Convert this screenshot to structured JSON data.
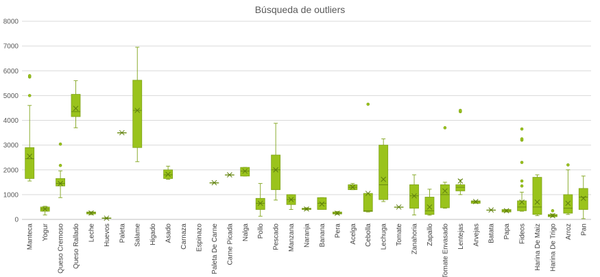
{
  "chart_data": {
    "type": "box",
    "title": "Búsqueda de outliers",
    "xlabel": "",
    "ylabel": "",
    "ylim": [
      0,
      8000
    ],
    "yticks": [
      0,
      1000,
      2000,
      3000,
      4000,
      5000,
      6000,
      7000,
      8000
    ],
    "grid": "horizontal",
    "legend": "none",
    "colors": {
      "box_fill": "#9AC31C",
      "box_stroke": "#7FA31A",
      "mean_marker": "#5E7E0F",
      "median": "#5E7E0F",
      "grid": "#D9D9D9",
      "axis": "#BFBFBF"
    },
    "categories": [
      "Manteca",
      "Yogur",
      "Queso Cremoso",
      "Queso Rallado",
      "Leche",
      "Huevos",
      "Paleta",
      "Salame",
      "Higado",
      "Asado",
      "Carnaza",
      "Espinazo",
      "Paleta De Carne",
      "Carne Picada",
      "Nalga",
      "Pollo",
      "Pescado",
      "Manzana",
      "Naranja",
      "Banana",
      "Pera",
      "Acelga",
      "Cebolla",
      "Lechuga",
      "Tomate",
      "Zanahoria",
      "Zapallo",
      "Tomate Envasado",
      "Lentejas",
      "Arvejas",
      "Batata",
      "Papa",
      "Fideos",
      "Harina De Maiz",
      "Harina De Trigo",
      "Arroz",
      "Pan"
    ],
    "boxes": [
      {
        "min": 1550,
        "q1": 1650,
        "median": 2450,
        "q3": 2900,
        "max": 4600,
        "mean": 2550,
        "outliers": [
          5000,
          5750,
          5800
        ]
      },
      {
        "min": 180,
        "q1": 330,
        "median": 420,
        "q3": 500,
        "max": 530,
        "mean": 420,
        "outliers": []
      },
      {
        "min": 880,
        "q1": 1350,
        "median": 1450,
        "q3": 1650,
        "max": 1960,
        "mean": 1450,
        "outliers": [
          2180,
          3040
        ]
      },
      {
        "min": 3700,
        "q1": 4150,
        "median": 4350,
        "q3": 5050,
        "max": 5600,
        "mean": 4480,
        "outliers": []
      },
      {
        "min": 190,
        "q1": 220,
        "median": 270,
        "q3": 300,
        "max": 310,
        "mean": 260,
        "outliers": []
      },
      {
        "min": 30,
        "q1": 40,
        "median": 50,
        "q3": 60,
        "max": 70,
        "mean": 50,
        "outliers": []
      },
      {
        "min": 3500,
        "q1": 3500,
        "median": 3500,
        "q3": 3500,
        "max": 3500,
        "mean": 3500,
        "outliers": []
      },
      {
        "min": 2330,
        "q1": 2900,
        "median": 4400,
        "q3": 5620,
        "max": 6950,
        "mean": 4400,
        "outliers": []
      },
      null,
      {
        "min": 1620,
        "q1": 1650,
        "median": 1800,
        "q3": 2000,
        "max": 2150,
        "mean": 1820,
        "outliers": []
      },
      null,
      null,
      {
        "min": 1480,
        "q1": 1480,
        "median": 1480,
        "q3": 1480,
        "max": 1480,
        "mean": 1480,
        "outliers": []
      },
      {
        "min": 1800,
        "q1": 1800,
        "median": 1800,
        "q3": 1800,
        "max": 1800,
        "mean": 1800,
        "outliers": []
      },
      {
        "min": 1750,
        "q1": 1750,
        "median": 1950,
        "q3": 2100,
        "max": 2100,
        "mean": 1950,
        "outliers": []
      },
      {
        "min": 130,
        "q1": 400,
        "median": 650,
        "q3": 850,
        "max": 1450,
        "mean": 650,
        "outliers": []
      },
      {
        "min": 780,
        "q1": 1200,
        "median": 2000,
        "q3": 2600,
        "max": 3880,
        "mean": 2000,
        "outliers": []
      },
      {
        "min": 400,
        "q1": 600,
        "median": 800,
        "q3": 1000,
        "max": 1000,
        "mean": 800,
        "outliers": []
      },
      {
        "min": 380,
        "q1": 400,
        "median": 420,
        "q3": 450,
        "max": 470,
        "mean": 420,
        "outliers": []
      },
      {
        "min": 400,
        "q1": 400,
        "median": 650,
        "q3": 880,
        "max": 880,
        "mean": 620,
        "outliers": []
      },
      {
        "min": 200,
        "q1": 220,
        "median": 250,
        "q3": 300,
        "max": 320,
        "mean": 250,
        "outliers": []
      },
      {
        "min": 1200,
        "q1": 1200,
        "median": 1300,
        "q3": 1400,
        "max": 1450,
        "mean": 1300,
        "outliers": []
      },
      {
        "min": 300,
        "q1": 320,
        "median": 350,
        "q3": 1050,
        "max": 1050,
        "mean": 1050,
        "outliers": [
          4650
        ]
      },
      {
        "min": 720,
        "q1": 800,
        "median": 1400,
        "q3": 3000,
        "max": 3250,
        "mean": 1620,
        "outliers": []
      },
      {
        "min": 500,
        "q1": 500,
        "median": 500,
        "q3": 500,
        "max": 500,
        "mean": 500,
        "outliers": []
      },
      {
        "min": 180,
        "q1": 450,
        "median": 950,
        "q3": 1400,
        "max": 1800,
        "mean": 950,
        "outliers": []
      },
      {
        "min": 170,
        "q1": 200,
        "median": 350,
        "q3": 900,
        "max": 1220,
        "mean": 500,
        "outliers": []
      },
      {
        "min": 450,
        "q1": 470,
        "median": 1000,
        "q3": 1400,
        "max": 1500,
        "mean": 1150,
        "outliers": [
          3700
        ]
      },
      {
        "min": 1000,
        "q1": 1150,
        "median": 1300,
        "q3": 1400,
        "max": 1600,
        "mean": 1550,
        "outliers": [
          4350,
          4400
        ]
      },
      {
        "min": 650,
        "q1": 650,
        "median": 720,
        "q3": 750,
        "max": 750,
        "mean": 720,
        "outliers": []
      },
      {
        "min": 380,
        "q1": 380,
        "median": 380,
        "q3": 380,
        "max": 380,
        "mean": 380,
        "outliers": []
      },
      {
        "min": 300,
        "q1": 300,
        "median": 350,
        "q3": 400,
        "max": 400,
        "mean": 350,
        "outliers": []
      },
      {
        "min": 330,
        "q1": 350,
        "median": 500,
        "q3": 750,
        "max": 1100,
        "mean": 700,
        "outliers": [
          1350,
          1550,
          2300,
          3200,
          3250,
          3650
        ]
      },
      {
        "min": 150,
        "q1": 200,
        "median": 500,
        "q3": 1700,
        "max": 1800,
        "mean": 700,
        "outliers": []
      },
      {
        "min": 100,
        "q1": 110,
        "median": 150,
        "q3": 200,
        "max": 220,
        "mean": 150,
        "outliers": [
          350
        ]
      },
      {
        "min": 200,
        "q1": 250,
        "median": 450,
        "q3": 1000,
        "max": 2000,
        "mean": 650,
        "outliers": [
          2200
        ]
      },
      {
        "min": 30,
        "q1": 400,
        "median": 900,
        "q3": 1250,
        "max": 1750,
        "mean": 850,
        "outliers": []
      }
    ]
  }
}
